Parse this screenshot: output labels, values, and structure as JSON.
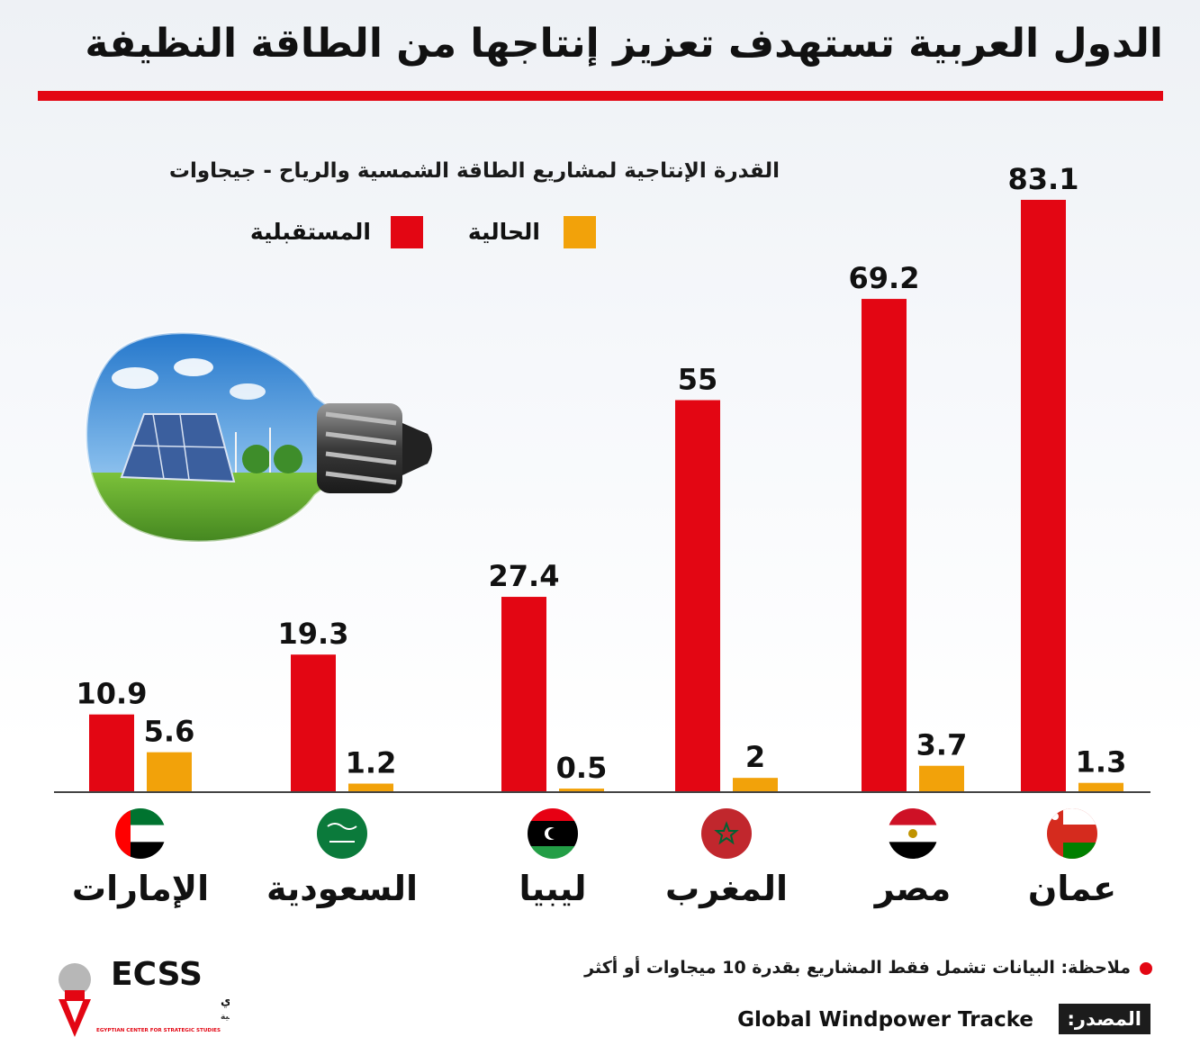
{
  "header": {
    "title": "الدول العربية تستهدف تعزيز إنتاجها من الطاقة النظيفة"
  },
  "chart_data": {
    "type": "bar",
    "title": "القدرة الإنتاجية لمشاريع الطاقة الشمسية والرياح - جيجاوات",
    "categories": [
      "عمان",
      "مصر",
      "المغرب",
      "ليبيا",
      "السعودية",
      "الإمارات"
    ],
    "series": [
      {
        "name": "المستقبلية",
        "color": "#e30613",
        "values": [
          83.1,
          69.2,
          55,
          27.4,
          19.3,
          10.9
        ],
        "labels": [
          "83.1",
          "69.2",
          "55",
          "27.4",
          "19.3",
          "10.9"
        ]
      },
      {
        "name": "الحالية",
        "color": "#f2a20a",
        "values": [
          1.3,
          3.7,
          2,
          0.5,
          1.2,
          5.6
        ],
        "labels": [
          "1.3",
          "3.7",
          "2",
          "0.5",
          "1.2",
          "5.6"
        ]
      }
    ],
    "ylim": [
      0,
      83.1
    ],
    "legend": "top-left",
    "grid": false,
    "flags": [
      "oman-flag-icon",
      "egypt-flag-icon",
      "morocco-flag-icon",
      "libya-flag-icon",
      "saudi-flag-icon",
      "uae-flag-icon"
    ]
  },
  "legend": {
    "future_label": "المستقبلية",
    "current_label": "الحالية",
    "future_color": "#e30613",
    "current_color": "#f2a20a"
  },
  "footer": {
    "note": "ملاحظة: البيانات تشمل فقط المشاريع بقدرة 10 ميجاوات أو أكثر",
    "source_label": "المصدر:",
    "source_text": "Global Windpower Tracke",
    "logo_abbr": "ECSS",
    "logo_name_ar": "المركز المصري",
    "logo_sub_ar": "للفكر والدراسات الاستراتيجية",
    "logo_en": "EGYPTIAN CENTER FOR STRATEGIC STUDIES"
  }
}
